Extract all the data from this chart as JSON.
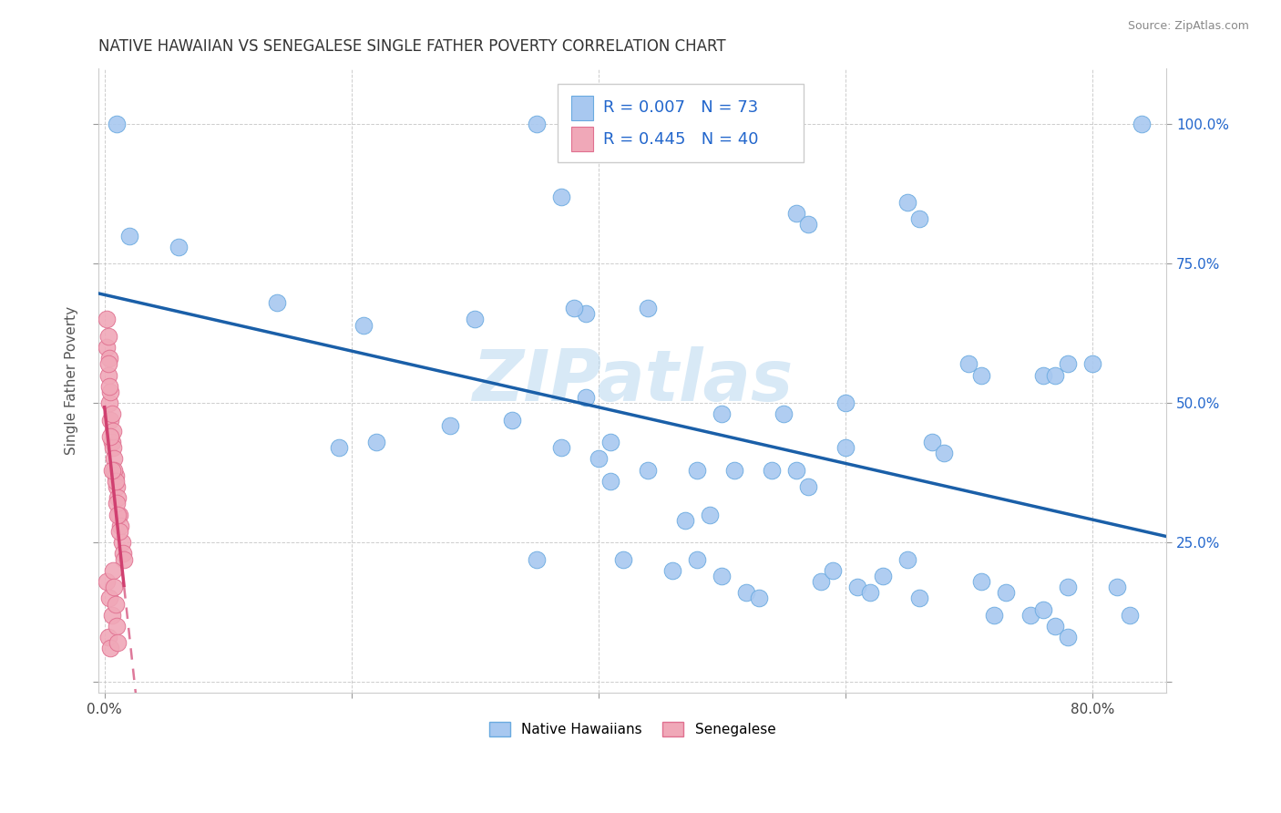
{
  "title": "NATIVE HAWAIIAN VS SENEGALESE SINGLE FATHER POVERTY CORRELATION CHART",
  "source": "Source: ZipAtlas.com",
  "ylabel": "Single Father Poverty",
  "watermark": "ZIPatlas",
  "color_hawaiian": "#a8c8f0",
  "color_senegalese": "#f0a8b8",
  "edge_hawaiian": "#6aaae0",
  "edge_senegalese": "#e07090",
  "trendline_hawaiian_color": "#1a5fa8",
  "trendline_senegalese_color": "#d04070",
  "background_color": "#ffffff",
  "grid_color": "#c8c8c8",
  "hawaiian_x": [
    0.02,
    0.06,
    0.14,
    0.19,
    0.22,
    0.3,
    0.33,
    0.35,
    0.37,
    0.39,
    0.41,
    0.42,
    0.44,
    0.46,
    0.47,
    0.48,
    0.49,
    0.5,
    0.51,
    0.52,
    0.53,
    0.54,
    0.55,
    0.56,
    0.57,
    0.58,
    0.59,
    0.6,
    0.61,
    0.62,
    0.63,
    0.65,
    0.66,
    0.67,
    0.68,
    0.7,
    0.71,
    0.72,
    0.73,
    0.75,
    0.76,
    0.77,
    0.78,
    0.01,
    0.35,
    0.84,
    0.37,
    0.56,
    0.57,
    0.65,
    0.66,
    0.71,
    0.76,
    0.77,
    0.78,
    0.82,
    0.83,
    0.38,
    0.39,
    0.4,
    0.41,
    0.21,
    0.28,
    0.44,
    0.48,
    0.5,
    0.6,
    0.78,
    0.8
  ],
  "hawaiian_y": [
    0.8,
    0.78,
    0.68,
    0.42,
    0.43,
    0.65,
    0.47,
    0.22,
    0.42,
    0.66,
    0.43,
    0.22,
    0.38,
    0.2,
    0.29,
    0.22,
    0.3,
    0.19,
    0.38,
    0.16,
    0.15,
    0.38,
    0.48,
    0.38,
    0.35,
    0.18,
    0.2,
    0.42,
    0.17,
    0.16,
    0.19,
    0.22,
    0.15,
    0.43,
    0.41,
    0.57,
    0.18,
    0.12,
    0.16,
    0.12,
    0.13,
    0.1,
    0.08,
    1.0,
    1.0,
    1.0,
    0.87,
    0.84,
    0.82,
    0.86,
    0.83,
    0.55,
    0.55,
    0.55,
    0.57,
    0.17,
    0.12,
    0.67,
    0.51,
    0.4,
    0.36,
    0.64,
    0.46,
    0.67,
    0.38,
    0.48,
    0.5,
    0.17,
    0.57
  ],
  "senegalese_x": [
    0.002,
    0.003,
    0.004,
    0.005,
    0.006,
    0.007,
    0.008,
    0.009,
    0.01,
    0.011,
    0.012,
    0.013,
    0.014,
    0.015,
    0.016,
    0.004,
    0.006,
    0.008,
    0.01,
    0.012,
    0.003,
    0.005,
    0.007,
    0.009,
    0.011,
    0.002,
    0.004,
    0.006,
    0.003,
    0.005,
    0.002,
    0.003,
    0.004,
    0.005,
    0.006,
    0.007,
    0.008,
    0.009,
    0.01,
    0.011
  ],
  "senegalese_y": [
    0.6,
    0.55,
    0.5,
    0.47,
    0.43,
    0.42,
    0.4,
    0.37,
    0.35,
    0.33,
    0.3,
    0.28,
    0.25,
    0.23,
    0.22,
    0.58,
    0.48,
    0.38,
    0.32,
    0.27,
    0.62,
    0.52,
    0.45,
    0.36,
    0.3,
    0.18,
    0.15,
    0.12,
    0.08,
    0.06,
    0.65,
    0.57,
    0.53,
    0.44,
    0.38,
    0.2,
    0.17,
    0.14,
    0.1,
    0.07
  ],
  "xlim": [
    -0.005,
    0.86
  ],
  "ylim": [
    -0.02,
    1.1
  ],
  "xtick_vals": [
    0.0,
    0.2,
    0.4,
    0.6,
    0.8
  ],
  "xtick_labels": [
    "0.0%",
    "",
    "",
    "",
    "80.0%"
  ],
  "ytick_vals": [
    0.0,
    0.25,
    0.5,
    0.75,
    1.0
  ],
  "ytick_labels_right": [
    "",
    "25.0%",
    "50.0%",
    "75.0%",
    "100.0%"
  ]
}
